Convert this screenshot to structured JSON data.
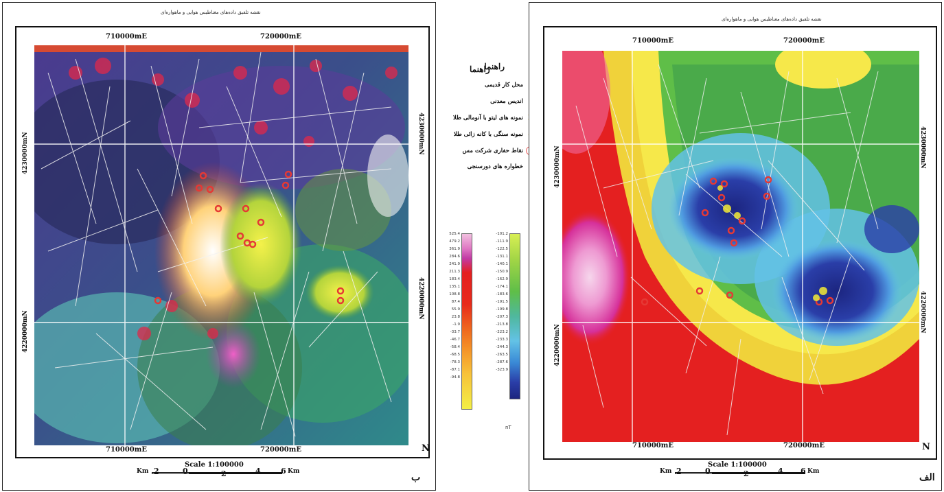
{
  "figure_label_left": "ب",
  "figure_label_right": "الف",
  "map_title_left": "نقشه تلفیق داده‌های مغناطیس هوایی و ماهواره‌ای",
  "map_title_right": "نقشه تلفیق داده‌های مغناطیس هوایی و ماهواره‌ای",
  "coords": {
    "x1": "710000mE",
    "x2": "720000mE",
    "y1": "4230000mN",
    "y2": "4220000mN"
  },
  "north_symbol": "N",
  "scale": {
    "label": "Scale 1:100000",
    "ticks": [
      "2",
      "0",
      "2",
      "4",
      "6"
    ],
    "unit": "Km"
  },
  "legend": {
    "title": "راهنما",
    "items": [
      {
        "label": "محل کار قدیمی",
        "symbol": "⊠",
        "color": "#6aa84f"
      },
      {
        "label": "اندیس معدنی",
        "symbol": "✕",
        "color": "#d32f2f"
      },
      {
        "label": "نمونه های لیتو با آنومالی طلا",
        "symbol": "✕",
        "color": "#e6b800"
      },
      {
        "label": "نمونه سنگی با کانه زائی طلا",
        "symbol": "◎",
        "color": "#e6b800"
      },
      {
        "label": "نقاط حفاری شرکت مس",
        "symbol": "◯",
        "color": "#e53935"
      },
      {
        "label": "خطواره های دورسنجی",
        "symbol": "",
        "color": "#ffffff"
      }
    ]
  },
  "colorbar_left": {
    "values": [
      "525.4",
      "479.2",
      "361.9",
      "284.6",
      "241.9",
      "211.3",
      "183.4",
      "135.1",
      "108.8",
      "87.4",
      "55.9",
      "23.8",
      "-1.9",
      "-33.7",
      "-46.7",
      "-58.4",
      "-68.5",
      "-78.3",
      "-87.1",
      "-94.8"
    ]
  },
  "colorbar_right": {
    "values": [
      "-101.2",
      "-111.9",
      "-122.5",
      "-131.1",
      "-140.1",
      "-150.9",
      "-162.9",
      "-174.1",
      "-183.6",
      "-191.5",
      "-199.8",
      "-207.3",
      "-213.8",
      "-223.2",
      "-233.3",
      "-244.3",
      "-263.5",
      "-287.6",
      "-323.9"
    ],
    "unit": "nT"
  }
}
